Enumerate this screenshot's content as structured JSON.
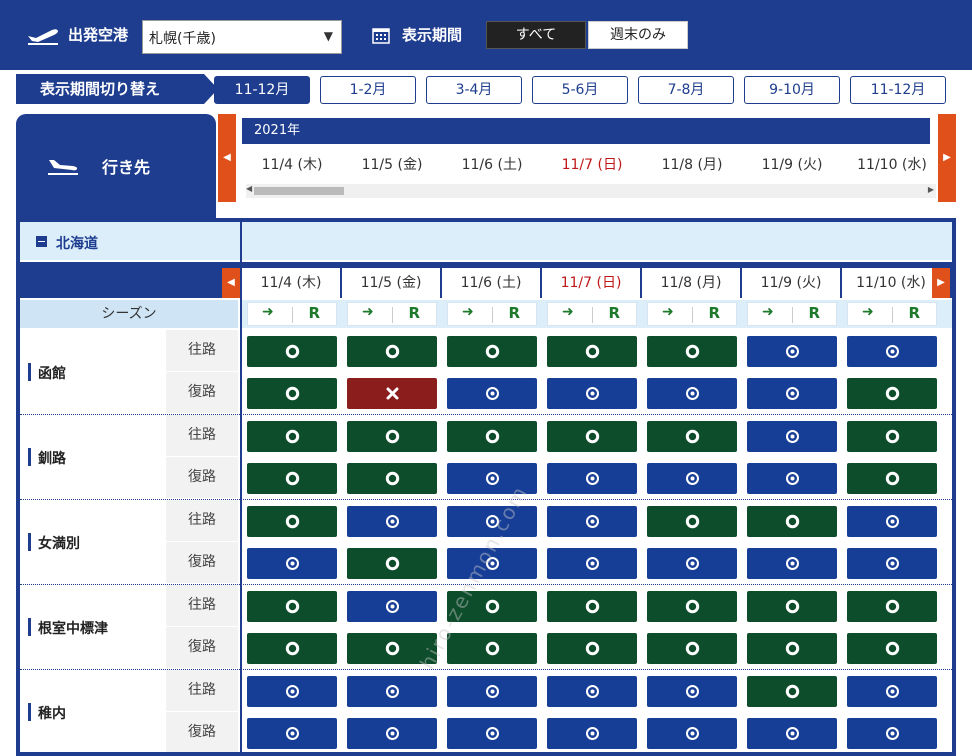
{
  "topbar": {
    "departure_label": "出発空港",
    "departure_value": "札幌(千歳)",
    "period_label": "表示期間",
    "period_all": "すべて",
    "period_weekend": "週末のみ"
  },
  "switcher": {
    "label": "表示期間切り替え",
    "months": [
      "11-12月",
      "1-2月",
      "3-4月",
      "5-6月",
      "7-8月",
      "9-10月",
      "11-12月"
    ],
    "active_index": 0
  },
  "destination_tab": "行き先",
  "year": "2021年",
  "dates": [
    {
      "label": "11/4 (木)",
      "sun": false
    },
    {
      "label": "11/5 (金)",
      "sun": false
    },
    {
      "label": "11/6 (土)",
      "sun": false
    },
    {
      "label": "11/7 (日)",
      "sun": true
    },
    {
      "label": "11/8 (月)",
      "sun": false
    },
    {
      "label": "11/9 (火)",
      "sun": false
    },
    {
      "label": "11/10 (水)",
      "sun": false
    }
  ],
  "region": "北海道",
  "season_label": "シーズン",
  "season_r": "R",
  "outbound": "往路",
  "inbound": "復路",
  "watermark": "hiro-zenmon.com",
  "colors": {
    "green": "#0e4d2c",
    "blue": "#173e96",
    "red": "#8c1d1d",
    "header": "#1e3d8f",
    "sunday": "#c01818"
  },
  "legend": {
    "g": "green-circle",
    "b": "blue-dot-circle",
    "x": "red-cross"
  },
  "destinations": [
    {
      "name": "函館",
      "out": [
        "g",
        "g",
        "g",
        "g",
        "g",
        "b",
        "b"
      ],
      "in": [
        "g",
        "x",
        "b",
        "b",
        "b",
        "b",
        "g"
      ]
    },
    {
      "name": "釧路",
      "out": [
        "g",
        "g",
        "g",
        "g",
        "g",
        "b",
        "g"
      ],
      "in": [
        "g",
        "g",
        "b",
        "b",
        "b",
        "b",
        "g"
      ]
    },
    {
      "name": "女満別",
      "out": [
        "g",
        "b",
        "b",
        "b",
        "g",
        "g",
        "b"
      ],
      "in": [
        "b",
        "g",
        "b",
        "b",
        "b",
        "b",
        "b"
      ]
    },
    {
      "name": "根室中標津",
      "out": [
        "g",
        "b",
        "g",
        "g",
        "g",
        "g",
        "g"
      ],
      "in": [
        "g",
        "g",
        "g",
        "g",
        "g",
        "g",
        "g"
      ]
    },
    {
      "name": "稚内",
      "out": [
        "b",
        "b",
        "b",
        "b",
        "b",
        "g",
        "b"
      ],
      "in": [
        "b",
        "b",
        "b",
        "b",
        "b",
        "b",
        "b"
      ]
    }
  ]
}
